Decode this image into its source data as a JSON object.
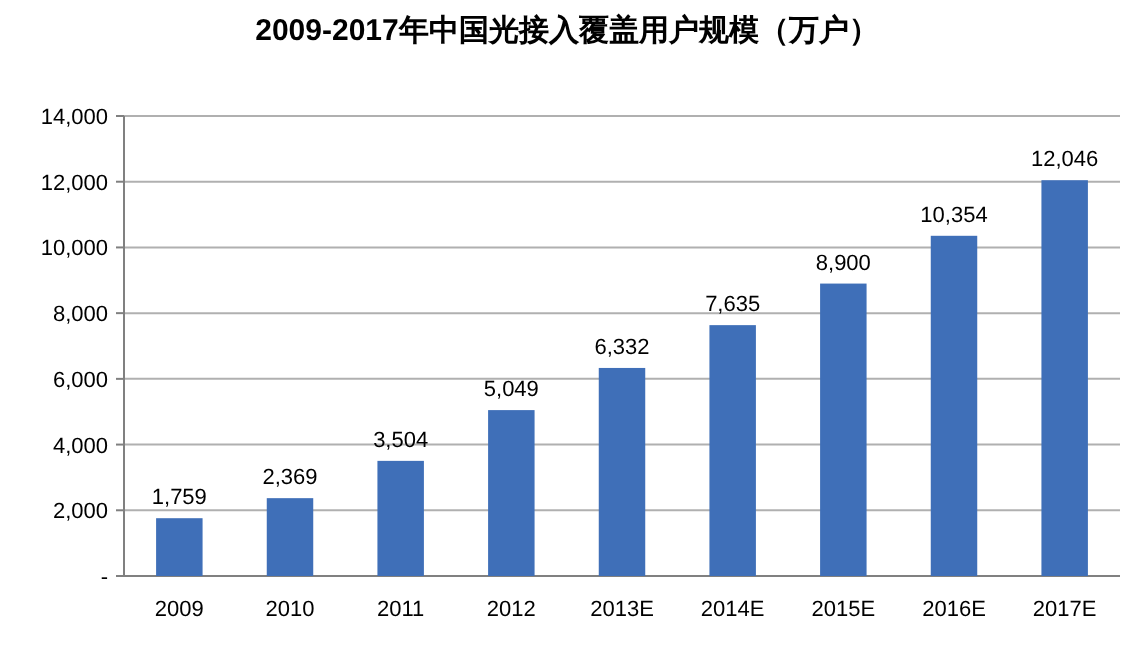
{
  "chart_data": {
    "type": "bar",
    "title": "2009-2017年中国光接入覆盖用户规模（万户）",
    "categories": [
      "2009",
      "2010",
      "2011",
      "2012",
      "2013E",
      "2014E",
      "2015E",
      "2016E",
      "2017E"
    ],
    "values": [
      1759,
      2369,
      3504,
      5049,
      6332,
      7635,
      8900,
      10354,
      12046
    ],
    "value_labels": [
      "1,759",
      "2,369",
      "3,504",
      "5,049",
      "6,332",
      "7,635",
      "8,900",
      "10,354",
      "12,046"
    ],
    "color": "#3f6fb8",
    "ylim": [
      0,
      14000
    ],
    "yticks": [
      {
        "value": 0,
        "label": "-"
      },
      {
        "value": 2000,
        "label": "2,000"
      },
      {
        "value": 4000,
        "label": "4,000"
      },
      {
        "value": 6000,
        "label": "6,000"
      },
      {
        "value": 8000,
        "label": "8,000"
      },
      {
        "value": 10000,
        "label": "10,000"
      },
      {
        "value": 12000,
        "label": "12,000"
      },
      {
        "value": 14000,
        "label": "14,000"
      }
    ],
    "grid": "y"
  }
}
